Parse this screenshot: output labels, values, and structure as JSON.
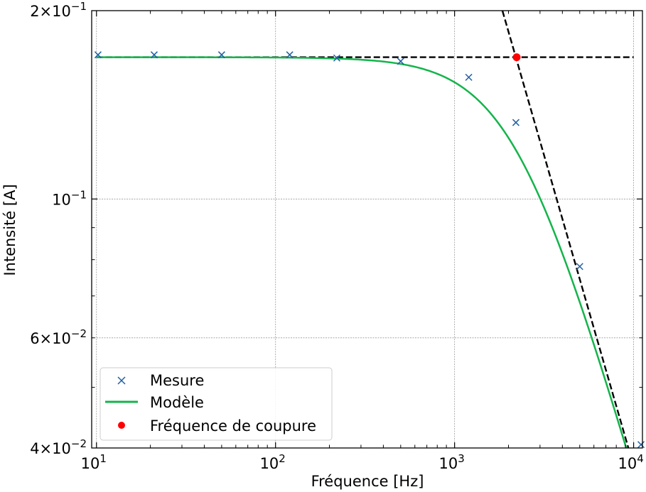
{
  "chart_data": {
    "type": "line",
    "xlabel": "Fréquence [Hz]",
    "ylabel": "Intensité [A]",
    "xscale": "log",
    "yscale": "log",
    "xlim": [
      9.4,
      11200
    ],
    "ylim": [
      0.04,
      0.2
    ],
    "grid": true,
    "legend_position": "lower-left",
    "x_ticks": [
      {
        "value": 10,
        "base": "10",
        "exp": "1"
      },
      {
        "value": 100,
        "base": "10",
        "exp": "2"
      },
      {
        "value": 1000,
        "base": "10",
        "exp": "3"
      },
      {
        "value": 10000,
        "base": "10",
        "exp": "4"
      }
    ],
    "y_ticks": [
      {
        "value": 0.2,
        "mant": "2",
        "base": "10",
        "exp": "−1"
      },
      {
        "value": 0.1,
        "mant": "",
        "base": "10",
        "exp": "−1"
      },
      {
        "value": 0.06,
        "mant": "6",
        "base": "10",
        "exp": "−2"
      },
      {
        "value": 0.04,
        "mant": "4",
        "base": "10",
        "exp": "−2"
      }
    ],
    "series": [
      {
        "name": "Mesure",
        "kind": "markers",
        "marker": "x",
        "color": "#1f5fa8",
        "x": [
          10.2,
          21,
          50,
          120,
          220,
          500,
          1200,
          2200,
          5000,
          11000
        ],
        "y": [
          0.17,
          0.17,
          0.17,
          0.17,
          0.168,
          0.166,
          0.1565,
          0.1325,
          0.078,
          0.0405
        ]
      },
      {
        "name": "Modèle",
        "kind": "line",
        "color": "#14b44b",
        "R": 5.935,
        "fc": 2222,
        "x_range": [
          10,
          10000
        ]
      },
      {
        "name": "Fréquence de coupure",
        "kind": "point",
        "color": "#ff0000",
        "x": [
          2222
        ],
        "y": [
          0.1685
        ]
      }
    ],
    "asymptotes": [
      {
        "kind": "horizontal",
        "color": "#000000",
        "y": 0.1685,
        "x_range": [
          10,
          10000
        ]
      },
      {
        "kind": "slope",
        "color": "#000000",
        "x": [
          1850,
          10000
        ],
        "y": [
          0.2,
          0.0374
        ]
      }
    ]
  }
}
